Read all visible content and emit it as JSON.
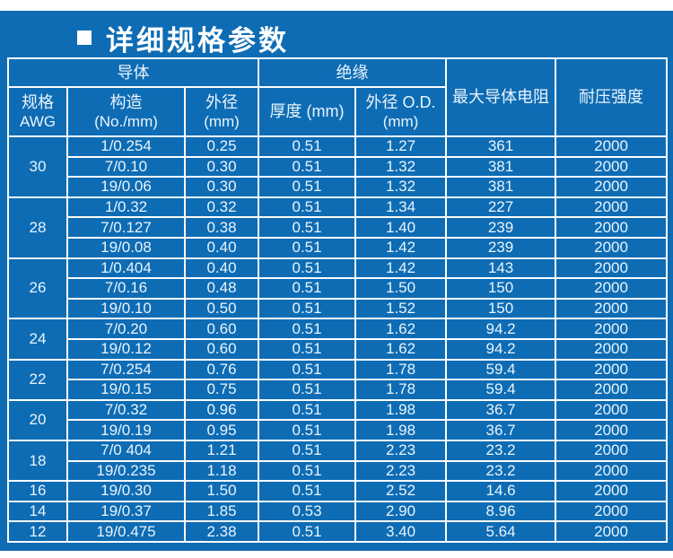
{
  "page": {
    "colors": {
      "panel_blue": "#0e6cb4",
      "border_white": "#fbfdff",
      "text_light": "#e9f4fc",
      "title_white": "#ffffff"
    }
  },
  "title": {
    "bullet": "■",
    "text": "详细规格参数"
  },
  "table": {
    "headers": {
      "conductor_group": "导体",
      "insulation_group": "绝缘",
      "spec_l1": "规格",
      "spec_l2": "AWG",
      "construction_l1": "构造",
      "construction_l2": "(No./mm)",
      "cond_od_l1": "外径",
      "cond_od_l2": "(mm)",
      "thickness": "厚度 (mm)",
      "ins_od_l1": "外径 O.D.",
      "ins_od_l2": "(mm)",
      "max_resistance": "最大导体电阻",
      "voltage_strength": "耐压强度"
    },
    "groups": [
      {
        "awg": "30",
        "rows": [
          [
            "1/0.254",
            "0.25",
            "0.51",
            "1.27",
            "361",
            "2000"
          ],
          [
            "7/0.10",
            "0.30",
            "0.51",
            "1.32",
            "381",
            "2000"
          ],
          [
            "19/0.06",
            "0.30",
            "0.51",
            "1.32",
            "381",
            "2000"
          ]
        ]
      },
      {
        "awg": "28",
        "rows": [
          [
            "1/0.32",
            "0.32",
            "0.51",
            "1.34",
            "227",
            "2000"
          ],
          [
            "7/0.127",
            "0.38",
            "0.51",
            "1.40",
            "239",
            "2000"
          ],
          [
            "19/0.08",
            "0.40",
            "0.51",
            "1.42",
            "239",
            "2000"
          ]
        ]
      },
      {
        "awg": "26",
        "rows": [
          [
            "1/0.404",
            "0.40",
            "0.51",
            "1.42",
            "143",
            "2000"
          ],
          [
            "7/0.16",
            "0.48",
            "0.51",
            "1.50",
            "150",
            "2000"
          ],
          [
            "19/0.10",
            "0.50",
            "0.51",
            "1.52",
            "150",
            "2000"
          ]
        ]
      },
      {
        "awg": "24",
        "rows": [
          [
            "7/0.20",
            "0.60",
            "0.51",
            "1.62",
            "94.2",
            "2000"
          ],
          [
            "19/0.12",
            "0.60",
            "0.51",
            "1.62",
            "94.2",
            "2000"
          ]
        ]
      },
      {
        "awg": "22",
        "rows": [
          [
            "7/0.254",
            "0.76",
            "0.51",
            "1.78",
            "59.4",
            "2000"
          ],
          [
            "19/0.15",
            "0.75",
            "0.51",
            "1.78",
            "59.4",
            "2000"
          ]
        ]
      },
      {
        "awg": "20",
        "rows": [
          [
            "7/0.32",
            "0.96",
            "0.51",
            "1.98",
            "36.7",
            "2000"
          ],
          [
            "19/0.19",
            "0.95",
            "0.51",
            "1.98",
            "36.7",
            "2000"
          ]
        ]
      },
      {
        "awg": "18",
        "rows": [
          [
            "7/0 404",
            "1.21",
            "0.51",
            "2.23",
            "23.2",
            "2000"
          ],
          [
            "19/0.235",
            "1.18",
            "0.51",
            "2.23",
            "23.2",
            "2000"
          ]
        ]
      },
      {
        "awg": "16",
        "rows": [
          [
            "19/0.30",
            "1.50",
            "0.51",
            "2.52",
            "14.6",
            "2000"
          ]
        ]
      },
      {
        "awg": "14",
        "rows": [
          [
            "19/0.37",
            "1.85",
            "0.53",
            "2.90",
            "8.96",
            "2000"
          ]
        ]
      },
      {
        "awg": "12",
        "rows": [
          [
            "19/0.475",
            "2.38",
            "0.51",
            "3.40",
            "5.64",
            "2000"
          ]
        ]
      }
    ]
  }
}
